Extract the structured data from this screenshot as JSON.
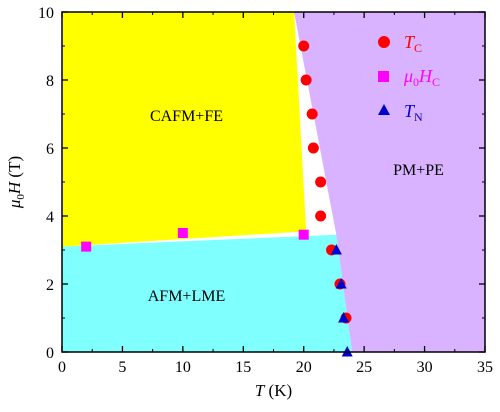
{
  "chart_data": {
    "type": "scatter",
    "xlabel": {
      "main": "T",
      "unit": " (K)"
    },
    "ylabel": {
      "mu": "μ",
      "sub": "0",
      "main": "H",
      "unit": " (T)"
    },
    "xlim": [
      0,
      35
    ],
    "ylim": [
      0,
      10
    ],
    "xticks": [
      0,
      5,
      10,
      15,
      20,
      25,
      30,
      35
    ],
    "yticks": [
      0,
      2,
      4,
      6,
      8,
      10
    ],
    "regions": [
      {
        "label": "CAFM+FE",
        "color": "#ffff00",
        "boundary": [
          [
            0,
            3.1
          ],
          [
            20.2,
            3.55
          ],
          [
            19.2,
            10
          ],
          [
            0,
            10
          ]
        ]
      },
      {
        "label": "AFM+LME",
        "color": "#80ffff",
        "boundary": [
          [
            0,
            0
          ],
          [
            24.0,
            0
          ],
          [
            22.7,
            3.45
          ],
          [
            0,
            3.1
          ]
        ]
      },
      {
        "label": "PM+PE",
        "color": "#d9b3ff",
        "boundary": [
          [
            19.2,
            10
          ],
          [
            35,
            10
          ],
          [
            35,
            0
          ],
          [
            24.0,
            0
          ],
          [
            22.7,
            3.45
          ]
        ]
      }
    ],
    "region_labels": [
      {
        "text": "CAFM+FE",
        "x": 10.3,
        "y": 6.8
      },
      {
        "text": "AFM+LME",
        "x": 10.3,
        "y": 1.5
      },
      {
        "text": "PM+PE",
        "x": 29.5,
        "y": 5.2
      }
    ],
    "series": [
      {
        "name": {
          "main": "T",
          "sub": "C"
        },
        "marker": "circle",
        "color": "#ff0000",
        "points": [
          [
            20.0,
            9.0
          ],
          [
            20.2,
            8.0
          ],
          [
            20.7,
            7.0
          ],
          [
            20.8,
            6.0
          ],
          [
            21.4,
            5.0
          ],
          [
            21.4,
            4.0
          ],
          [
            22.3,
            3.0
          ],
          [
            23.0,
            2.0
          ],
          [
            23.5,
            1.0
          ]
        ]
      },
      {
        "name": {
          "mu": "μ",
          "sub0": "0",
          "main": "H",
          "sub": "C"
        },
        "marker": "square",
        "color": "#ff00ff",
        "points": [
          [
            2.0,
            3.1
          ],
          [
            10.0,
            3.5
          ],
          [
            20.0,
            3.45
          ]
        ]
      },
      {
        "name": {
          "main": "T",
          "sub": "N"
        },
        "marker": "triangle",
        "color": "#0000cc",
        "points": [
          [
            22.7,
            3.0
          ],
          [
            23.1,
            2.0
          ],
          [
            23.3,
            1.0
          ],
          [
            23.6,
            0.0
          ]
        ]
      }
    ],
    "legend_placement": "top-right",
    "grid": false
  }
}
